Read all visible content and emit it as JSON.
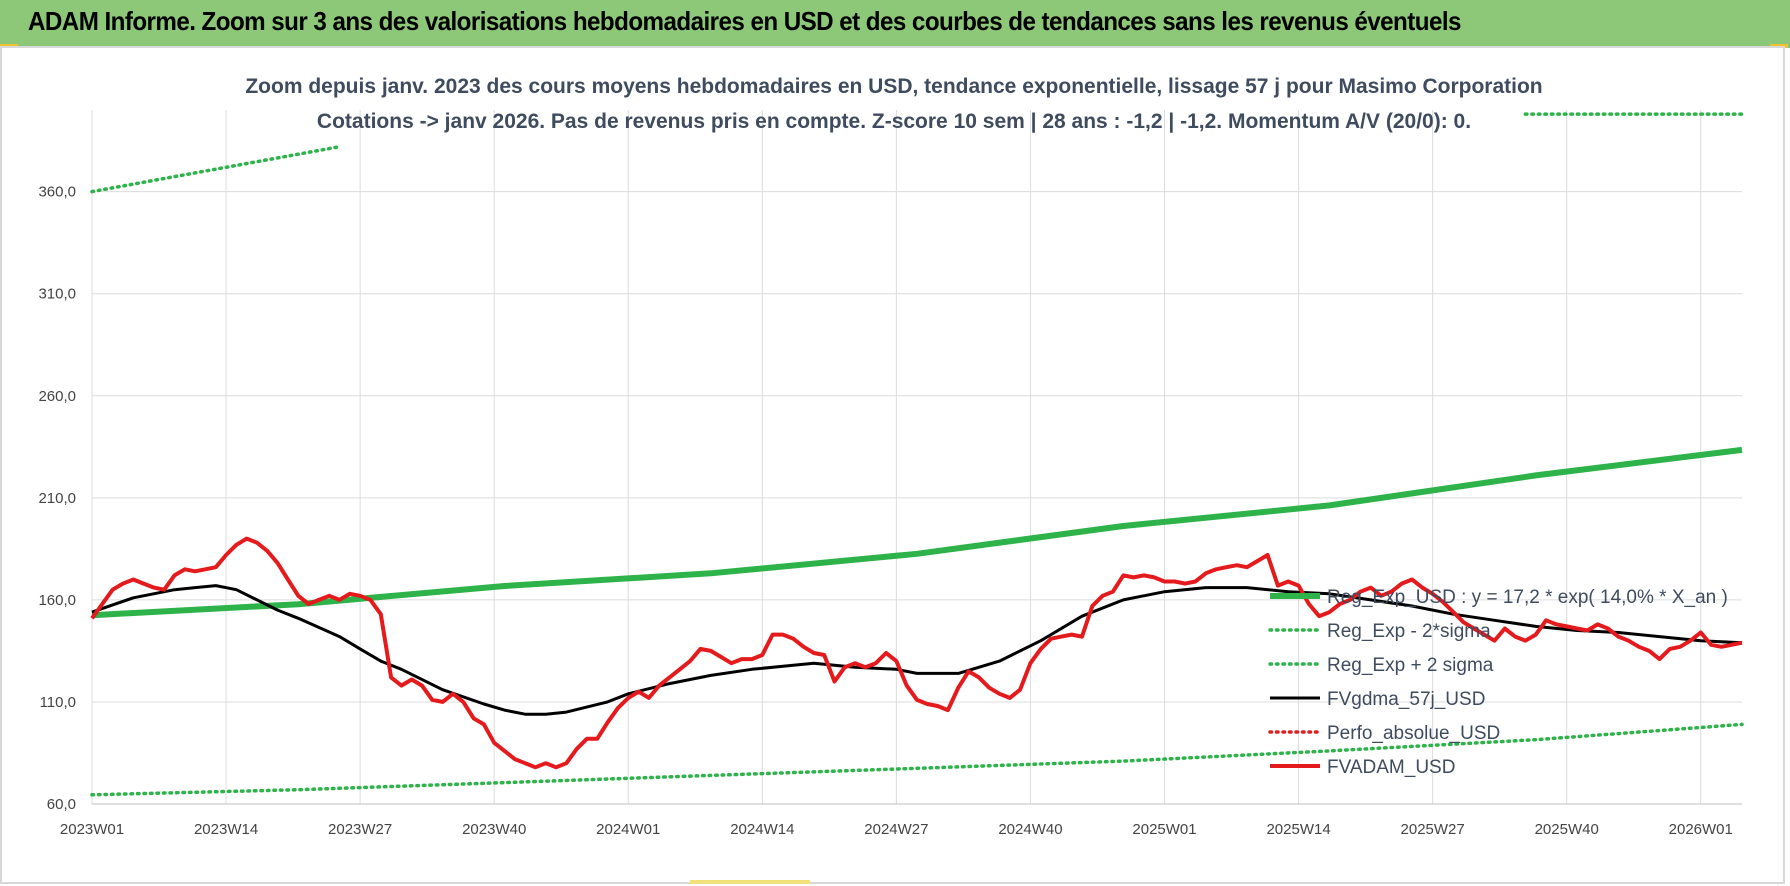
{
  "header": {
    "title": "ADAM Informe. Zoom sur 3 ans des valorisations hebdomadaires en USD et des courbes de tendances sans les revenus éventuels"
  },
  "chart_data": {
    "type": "line",
    "title": "Zoom depuis janv. 2023 des cours moyens hebdomadaires en USD, tendance exponentielle, lissage 57 j pour Masimo Corporation",
    "subtitle": "Cotations -> janv 2026. Pas de revenus pris en compte. Z-score 10 sem | 28 ans : -1,2 | -1,2. Momentum A/V (20/0): 0.",
    "ylim": [
      60,
      400
    ],
    "y_ticks": [
      "60,0",
      "110,0",
      "160,0",
      "210,0",
      "260,0",
      "310,0",
      "360,0"
    ],
    "y_tick_values": [
      60,
      110,
      160,
      210,
      260,
      310,
      360
    ],
    "x_tick_labels": [
      "2023W01",
      "2023W14",
      "2023W27",
      "2023W40",
      "2024W01",
      "2024W14",
      "2024W27",
      "2024W40",
      "2025W01",
      "2025W14",
      "2025W27",
      "2025W40",
      "2026W01"
    ],
    "x_tick_weeks": [
      0,
      13,
      26,
      39,
      52,
      65,
      78,
      91,
      104,
      117,
      130,
      143,
      156
    ],
    "x_range_weeks": [
      0,
      160
    ],
    "grid": true,
    "legend_position": "bottom-right",
    "series": [
      {
        "name": "Reg_Exp_USD : y = 17,2 * exp( 14,0% *  X_an )",
        "style": "solid-thick",
        "color": "#2db34a",
        "x": [
          0,
          20,
          40,
          60,
          80,
          100,
          120,
          140,
          160
        ],
        "y": [
          152.5,
          157.9,
          166.8,
          173.0,
          182.6,
          196.2,
          206.3,
          221.0,
          233.5
        ]
      },
      {
        "name": "Reg_Exp - 2*sigma",
        "style": "dotted",
        "color": "#2db34a",
        "x": [
          0,
          20,
          40,
          60,
          80,
          100,
          120,
          140,
          160
        ],
        "y": [
          64.5,
          67.0,
          70.5,
          74.0,
          77.5,
          81.0,
          86.0,
          91.5,
          99.0
        ]
      },
      {
        "name": "Reg_Exp + 2 sigma",
        "style": "dotted",
        "color": "#2db34a",
        "segments": [
          {
            "x": [
              0,
              24
            ],
            "y": [
              360,
              382
            ]
          },
          {
            "x": [
              139,
              160
            ],
            "y": [
              398,
              398
            ]
          }
        ]
      },
      {
        "name": "FVgdma_57j_USD",
        "style": "solid",
        "color": "#000000",
        "x": [
          0,
          4,
          8,
          10,
          12,
          14,
          16,
          18,
          20,
          24,
          26,
          28,
          30,
          34,
          38,
          40,
          42,
          44,
          46,
          50,
          52,
          56,
          60,
          64,
          68,
          70,
          72,
          74,
          78,
          80,
          84,
          88,
          92,
          96,
          100,
          104,
          108,
          110,
          112,
          116,
          120,
          124,
          128,
          132,
          136,
          140,
          144,
          148,
          152,
          156,
          160
        ],
        "y": [
          154,
          161,
          165,
          166,
          167,
          165,
          160,
          155,
          151,
          142,
          136,
          130,
          126,
          116,
          109,
          106,
          104,
          104,
          105,
          110,
          114,
          119,
          123,
          126,
          128,
          129,
          128,
          127,
          126,
          124,
          124,
          130,
          140,
          152,
          160,
          164,
          166,
          166,
          166,
          164,
          163,
          160,
          157,
          153,
          150,
          147,
          145,
          144,
          142,
          140,
          139
        ]
      },
      {
        "name": "Perfo_absolue_USD",
        "style": "dotted",
        "color": "#e02020",
        "x": [],
        "y": []
      },
      {
        "name": "FVADAM_USD",
        "style": "solid-thick",
        "color": "#e41a1c",
        "x": [
          0,
          1,
          2,
          3,
          4,
          5,
          6,
          7,
          8,
          9,
          10,
          11,
          12,
          13,
          14,
          15,
          16,
          17,
          18,
          19,
          20,
          21,
          22,
          23,
          24,
          25,
          26,
          27,
          28,
          29,
          30,
          31,
          32,
          33,
          34,
          35,
          36,
          37,
          38,
          39,
          40,
          41,
          42,
          43,
          44,
          45,
          46,
          47,
          48,
          49,
          50,
          51,
          52,
          53,
          54,
          55,
          56,
          57,
          58,
          59,
          60,
          61,
          62,
          63,
          64,
          65,
          66,
          67,
          68,
          69,
          70,
          71,
          72,
          73,
          74,
          75,
          76,
          77,
          78,
          79,
          80,
          81,
          82,
          83,
          84,
          85,
          86,
          87,
          88,
          89,
          90,
          91,
          92,
          93,
          94,
          95,
          96,
          97,
          98,
          99,
          100,
          101,
          102,
          103,
          104,
          105,
          106,
          107,
          108,
          109,
          110,
          111,
          112,
          113,
          114,
          115,
          116,
          117,
          118,
          119,
          120,
          121,
          122,
          123,
          124,
          125,
          126,
          127,
          128,
          129,
          130,
          131,
          132,
          133,
          134,
          135,
          136,
          137,
          138,
          139,
          140,
          141,
          142,
          143,
          144,
          145,
          146,
          147,
          148,
          149,
          150,
          151,
          152,
          153,
          154,
          155,
          156,
          157,
          158,
          159,
          160
        ],
        "y": [
          151,
          158,
          165,
          168,
          170,
          168,
          166,
          165,
          172,
          175,
          174,
          175,
          176,
          182,
          187,
          190,
          188,
          184,
          178,
          170,
          162,
          158,
          160,
          162,
          160,
          163,
          162,
          160,
          153,
          122,
          118,
          121,
          118,
          111,
          110,
          114,
          110,
          102,
          99,
          90,
          86,
          82,
          80,
          78,
          80,
          78,
          80,
          87,
          92,
          92,
          100,
          107,
          112,
          115,
          112,
          118,
          122,
          126,
          130,
          136,
          135,
          132,
          129,
          131,
          131,
          133,
          143,
          143,
          141,
          137,
          134,
          133,
          120,
          127,
          129,
          127,
          129,
          134,
          130,
          118,
          111,
          109,
          108,
          106,
          117,
          125,
          122,
          117,
          114,
          112,
          116,
          129,
          136,
          141,
          142,
          143,
          142,
          157,
          162,
          164,
          172,
          171,
          172,
          171,
          169,
          169,
          168,
          169,
          173,
          175,
          176,
          177,
          176,
          179,
          182,
          167,
          169,
          167,
          158,
          152,
          154,
          158,
          160,
          164,
          166,
          162,
          164,
          168,
          170,
          166,
          163,
          159,
          154,
          149,
          146,
          143,
          140,
          146,
          142,
          140,
          143,
          150,
          148,
          147,
          146,
          145,
          148,
          146,
          142,
          140,
          137,
          135,
          131,
          136,
          137,
          140,
          144,
          138,
          137,
          138,
          139
        ]
      }
    ]
  }
}
